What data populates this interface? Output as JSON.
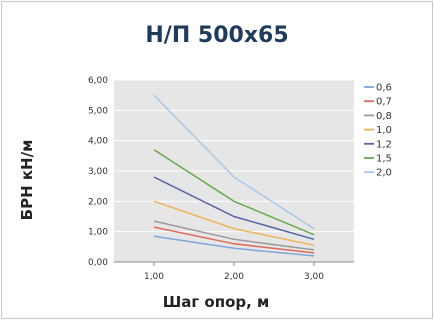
{
  "chart_data": {
    "type": "line",
    "title": "Н/П 500х65",
    "xlabel": "Шаг опор, м",
    "ylabel": "БРН кН/м",
    "x": [
      1.0,
      2.0,
      3.0
    ],
    "x_tick_labels": [
      "1,00",
      "2,00",
      "3,00"
    ],
    "xlim": [
      0.5,
      3.5
    ],
    "ylim": [
      0,
      6
    ],
    "y_tick_values": [
      0,
      1,
      2,
      3,
      4,
      5,
      6
    ],
    "y_tick_labels": [
      "0,00",
      "1,00",
      "2,00",
      "3,00",
      "4,00",
      "5,00",
      "6,00"
    ],
    "grid": true,
    "legend_position": "right",
    "plot_background": "#e6e6e6",
    "series": [
      {
        "name": "0,6",
        "color": "#7ea6d9",
        "values": [
          0.85,
          0.45,
          0.2
        ]
      },
      {
        "name": "0,7",
        "color": "#e06a5a",
        "values": [
          1.15,
          0.6,
          0.3
        ]
      },
      {
        "name": "0,8",
        "color": "#9a9a9a",
        "values": [
          1.35,
          0.75,
          0.4
        ]
      },
      {
        "name": "1,0",
        "color": "#f0b35a",
        "values": [
          2.0,
          1.1,
          0.55
        ]
      },
      {
        "name": "1,2",
        "color": "#5566aa",
        "values": [
          2.8,
          1.5,
          0.75
        ]
      },
      {
        "name": "1,5",
        "color": "#6aa84f",
        "values": [
          3.7,
          2.0,
          0.9
        ]
      },
      {
        "name": "2,0",
        "color": "#a8c8ea",
        "values": [
          5.5,
          2.8,
          1.1
        ]
      }
    ]
  }
}
